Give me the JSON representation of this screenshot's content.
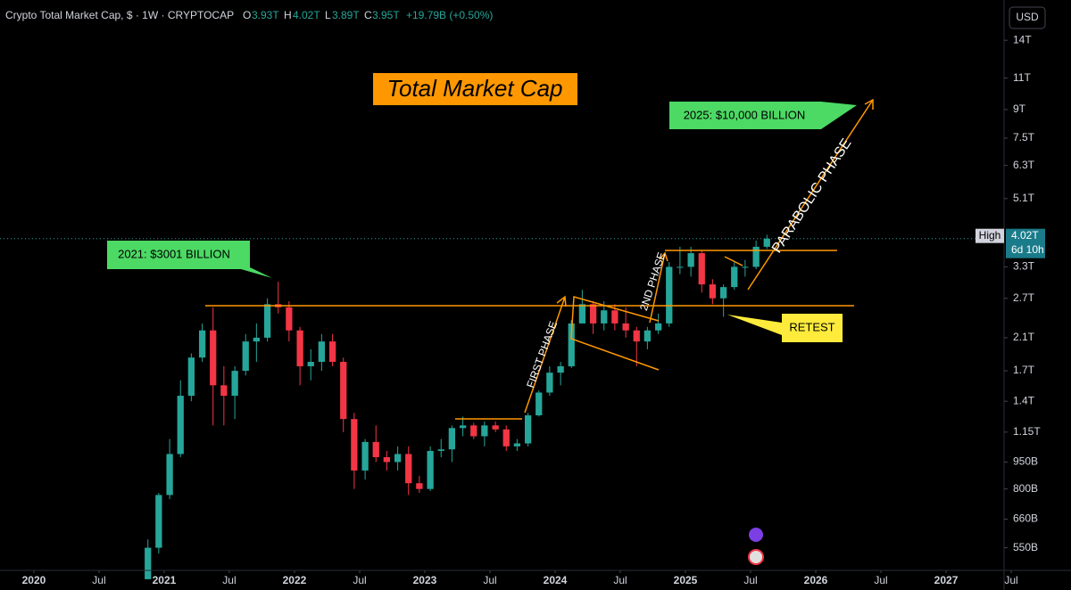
{
  "chart_data": {
    "type": "candlestick",
    "title": "Crypto Total Market Cap, $ · 1W · CRYPTOCAP",
    "header_ohlc": [
      {
        "key": "O",
        "text": "3.93T"
      },
      {
        "key": "H",
        "text": "4.02T"
      },
      {
        "key": "L",
        "text": "3.89T"
      },
      {
        "key": "C",
        "text": "3.95T"
      }
    ],
    "change": "+19.79B (+0.50%)",
    "currency": "USD",
    "annotations": [
      "Total Market Cap",
      "2025: $10,000 BILLION",
      "2021: $3001 BILLION",
      "RETEST",
      "FIRST PHASE",
      "2ND PHASE",
      "PARABOLIC PHASE"
    ],
    "price_tag": {
      "name": "High",
      "value": 4.02,
      "label": "4.02T",
      "countdown": "6d 10h"
    },
    "up_color": "#26a69a",
    "down_color": "#f23645",
    "log_scale": true,
    "grid": false,
    "xlim": [
      2019.74,
      2027.445
    ],
    "ylim": [
      0.476,
      18.1
    ],
    "xticks": [
      2020,
      {
        "value": 2020.5,
        "label": "Jul"
      },
      2021,
      {
        "value": 2021.5,
        "label": "Jul"
      },
      2022,
      {
        "value": 2022.5,
        "label": "Jul"
      },
      2023,
      {
        "value": 2023.5,
        "label": "Jul"
      },
      2024,
      {
        "value": 2024.5,
        "label": "Jul"
      },
      2025,
      {
        "value": 2025.5,
        "label": "Jul"
      },
      2026,
      {
        "value": 2026.5,
        "label": "Jul"
      },
      2027,
      {
        "value": 2027.5,
        "label": "Jul"
      }
    ],
    "yticks": [
      {
        "value": 14,
        "label": "14T"
      },
      {
        "value": 11,
        "label": "11T"
      },
      {
        "value": 9,
        "label": "9T"
      },
      {
        "value": 7.5,
        "label": "7.5T"
      },
      {
        "value": 6.3,
        "label": "6.3T"
      },
      {
        "value": 5.1,
        "label": "5.1T"
      },
      {
        "value": 3.3,
        "label": "3.3T"
      },
      {
        "value": 2.7,
        "label": "2.7T"
      },
      {
        "value": 2.1,
        "label": "2.1T"
      },
      {
        "value": 1.7,
        "label": "1.7T"
      },
      {
        "value": 1.4,
        "label": "1.4T"
      },
      {
        "value": 1.15,
        "label": "1.15T"
      },
      {
        "value": 0.95,
        "label": "950B"
      },
      {
        "value": 0.8,
        "label": "800B"
      },
      {
        "value": 0.66,
        "label": "660B"
      },
      {
        "value": 0.55,
        "label": "550B"
      }
    ],
    "x": [
      2020.875,
      2020.958,
      2021.042,
      2021.125,
      2021.208,
      2021.292,
      2021.375,
      2021.458,
      2021.542,
      2021.625,
      2021.708,
      2021.792,
      2021.875,
      2021.958,
      2022.042,
      2022.125,
      2022.208,
      2022.292,
      2022.375,
      2022.458,
      2022.542,
      2022.625,
      2022.708,
      2022.792,
      2022.875,
      2022.958,
      2023.042,
      2023.125,
      2023.208,
      2023.292,
      2023.375,
      2023.458,
      2023.542,
      2023.625,
      2023.708,
      2023.792,
      2023.875,
      2023.958,
      2024.042,
      2024.125,
      2024.208,
      2024.292,
      2024.375,
      2024.458,
      2024.542,
      2024.625,
      2024.708,
      2024.792,
      2024.875,
      2024.958,
      2025.042,
      2025.125,
      2025.208,
      2025.292,
      2025.375,
      2025.458,
      2025.542,
      2025.625
    ],
    "open": [
      0.45,
      0.55,
      0.77,
      1.0,
      1.45,
      1.85,
      2.2,
      1.55,
      1.45,
      1.7,
      2.05,
      2.1,
      2.6,
      2.55,
      2.2,
      1.75,
      1.8,
      2.05,
      1.8,
      1.25,
      0.9,
      1.08,
      0.98,
      0.95,
      1.0,
      0.83,
      0.8,
      1.02,
      1.03,
      1.18,
      1.2,
      1.12,
      1.2,
      1.17,
      1.05,
      1.07,
      1.28,
      1.48,
      1.68,
      1.75,
      2.3,
      2.6,
      2.3,
      2.5,
      2.3,
      2.2,
      2.05,
      2.2,
      2.3,
      3.3,
      3.3,
      3.6,
      2.95,
      2.7,
      2.9,
      3.3,
      3.3,
      3.75
    ],
    "high": [
      0.58,
      0.78,
      1.1,
      1.6,
      1.9,
      2.3,
      2.55,
      1.75,
      1.75,
      2.15,
      2.3,
      2.7,
      3.0,
      2.65,
      2.25,
      1.95,
      2.15,
      2.15,
      1.85,
      1.3,
      1.1,
      1.2,
      1.02,
      1.05,
      1.05,
      0.87,
      1.05,
      1.1,
      1.2,
      1.27,
      1.22,
      1.23,
      1.23,
      1.2,
      1.1,
      1.3,
      1.5,
      1.75,
      1.8,
      2.35,
      2.85,
      2.65,
      2.65,
      2.6,
      2.55,
      2.25,
      2.25,
      2.45,
      3.4,
      3.75,
      3.75,
      3.65,
      3.05,
      2.95,
      3.4,
      3.45,
      3.9,
      4.05
    ],
    "low": [
      0.45,
      0.53,
      0.75,
      0.98,
      1.4,
      1.8,
      1.2,
      1.2,
      1.25,
      1.65,
      1.8,
      2.05,
      2.45,
      2.05,
      1.55,
      1.6,
      1.7,
      1.75,
      1.15,
      0.8,
      0.85,
      0.95,
      0.9,
      0.9,
      0.77,
      0.78,
      0.79,
      0.98,
      0.95,
      1.12,
      1.1,
      1.05,
      1.15,
      1.02,
      1.02,
      1.05,
      1.27,
      1.45,
      1.55,
      1.73,
      2.3,
      2.15,
      2.2,
      2.2,
      2.1,
      1.75,
      1.95,
      2.15,
      2.25,
      3.15,
      3.1,
      2.8,
      2.6,
      2.4,
      2.85,
      3.1,
      3.25,
      3.7
    ],
    "close": [
      0.55,
      0.77,
      1.0,
      1.45,
      1.85,
      2.2,
      1.55,
      1.45,
      1.7,
      2.05,
      2.1,
      2.6,
      2.55,
      2.2,
      1.75,
      1.8,
      2.05,
      1.8,
      1.25,
      0.9,
      1.08,
      0.98,
      0.95,
      1.0,
      0.83,
      0.8,
      1.02,
      1.03,
      1.18,
      1.2,
      1.12,
      1.2,
      1.17,
      1.05,
      1.07,
      1.28,
      1.48,
      1.68,
      1.75,
      2.3,
      2.6,
      2.3,
      2.5,
      2.3,
      2.2,
      2.05,
      2.2,
      2.3,
      3.3,
      3.3,
      3.6,
      2.95,
      2.7,
      2.9,
      3.3,
      3.3,
      3.75,
      3.95
    ]
  }
}
